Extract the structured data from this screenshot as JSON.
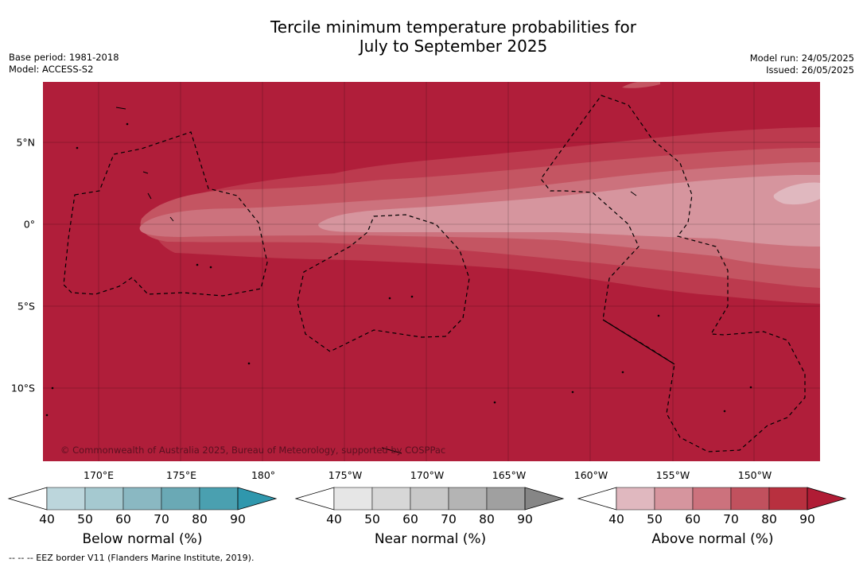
{
  "title_line1": "Tercile minimum temperature probabilities for",
  "title_line2": "July to September 2025",
  "base_period": "Base period: 1981-2018",
  "model": "Model: ACCESS-S2",
  "model_run": "Model run: 24/05/2025",
  "issued": "Issued: 26/05/2025",
  "lon_labels": [
    "170°E",
    "175°E",
    "180°",
    "175°W",
    "170°W",
    "165°W",
    "160°W",
    "155°W",
    "150°W"
  ],
  "lat_labels": [
    "5°N",
    "0°",
    "5°S",
    "10°S"
  ],
  "copyright": "© Commonwealth of Australia 2025, Bureau of Meteorology, supported by COSPPac",
  "colorbars": [
    {
      "title": "Below normal (%)",
      "ticks": [
        "40",
        "50",
        "60",
        "70",
        "80",
        "90"
      ],
      "colors": [
        "#ffffff",
        "#bcd6dc",
        "#a5c9d0",
        "#8ab8c2",
        "#6aa9b5",
        "#4aa0b0",
        "#2f97ad"
      ]
    },
    {
      "title": "Near normal (%)",
      "ticks": [
        "40",
        "50",
        "60",
        "70",
        "80",
        "90"
      ],
      "colors": [
        "#ffffff",
        "#e6e6e6",
        "#d7d7d7",
        "#c8c8c8",
        "#b4b4b4",
        "#a0a0a0",
        "#868686"
      ]
    },
    {
      "title": "Above normal (%)",
      "ticks": [
        "40",
        "50",
        "60",
        "70",
        "80",
        "90"
      ],
      "colors": [
        "#ffffff",
        "#e0b8bf",
        "#d6959e",
        "#cc727d",
        "#c1515e",
        "#b8303f",
        "#b01c35"
      ]
    }
  ],
  "footer": "-- -- -- EEZ border V11 (Flanders Marine Institute, 2019).",
  "map_colors": {
    "base": "#b01e3a",
    "band_70_80": "#bc3a4e",
    "band_60_70": "#c45562",
    "band_50_60": "#cc727d",
    "band_40_50": "#d6959e",
    "band_core": "#e0b8bf"
  }
}
